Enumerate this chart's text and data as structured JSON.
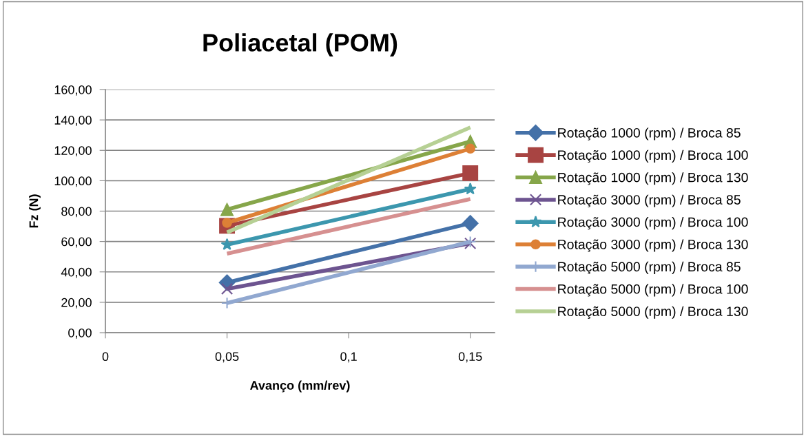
{
  "chart_data": {
    "type": "line",
    "title": "Poliacetal (POM)",
    "xlabel": "Avanço (mm/rev)",
    "ylabel": "Fz (N)",
    "x": [
      0.05,
      0.15
    ],
    "series": [
      {
        "name": "Rotação 1000 (rpm) / Broca 85",
        "color": "#4471a8",
        "marker": "diamond",
        "values": [
          33.0,
          72.0
        ]
      },
      {
        "name": "Rotação 1000 (rpm) / Broca 100",
        "color": "#a84442",
        "marker": "square",
        "values": [
          70.3,
          105.0
        ]
      },
      {
        "name": "Rotação 1000 (rpm) / Broca 130",
        "color": "#86a64a",
        "marker": "triangle",
        "values": [
          81.0,
          125.8
        ]
      },
      {
        "name": "Rotação 3000 (rpm) / Broca 85",
        "color": "#6d5490",
        "marker": "cross",
        "values": [
          28.8,
          58.8
        ]
      },
      {
        "name": "Rotação 3000 (rpm) / Broca 100",
        "color": "#3c97ae",
        "marker": "star",
        "values": [
          57.9,
          94.5
        ]
      },
      {
        "name": "Rotação 3000 (rpm) / Broca 130",
        "color": "#dd8036",
        "marker": "circle",
        "values": [
          72.3,
          121.1
        ]
      },
      {
        "name": "Rotação 5000 (rpm) / Broca 85",
        "color": "#91a8d0",
        "marker": "plus",
        "values": [
          19.5,
          59.8
        ]
      },
      {
        "name": "Rotação 5000 (rpm) / Broca 100",
        "color": "#d69090",
        "marker": "none",
        "values": [
          52.0,
          87.9
        ]
      },
      {
        "name": "Rotação 5000 (rpm) / Broca 130",
        "color": "#b6d094",
        "marker": "none",
        "values": [
          66.0,
          135.1
        ]
      }
    ],
    "xlim": [
      0,
      0.16
    ],
    "xticks": [
      0,
      {
        "value": 0.05,
        "label": "0,05"
      },
      {
        "value": 0.1,
        "label": "0,1"
      },
      {
        "value": 0.15,
        "label": "0,15"
      }
    ],
    "ylim": [
      0,
      160
    ],
    "yticks": [
      {
        "value": 0,
        "label": "0,00"
      },
      {
        "value": 20,
        "label": "20,00"
      },
      {
        "value": 40,
        "label": "40,00"
      },
      {
        "value": 60,
        "label": "60,00"
      },
      {
        "value": 80,
        "label": "80,00"
      },
      {
        "value": 100,
        "label": "100,00"
      },
      {
        "value": 120,
        "label": "120,00"
      },
      {
        "value": 140,
        "label": "140,00"
      },
      {
        "value": 160,
        "label": "160,00"
      }
    ],
    "grid": "y",
    "legend": "right",
    "line_style": "solid"
  }
}
